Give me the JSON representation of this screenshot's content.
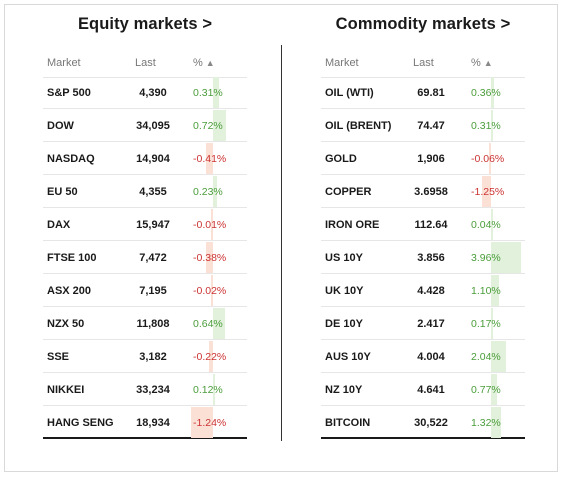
{
  "equity": {
    "title": "Equity markets >",
    "headers": {
      "market": "Market",
      "last": "Last",
      "pct": "%",
      "sort_arrow": "▲"
    },
    "rows": [
      {
        "market": "S&P 500",
        "last": "4,390",
        "pct": "0.31%",
        "value": 0.31
      },
      {
        "market": "DOW",
        "last": "34,095",
        "pct": "0.72%",
        "value": 0.72
      },
      {
        "market": "NASDAQ",
        "last": "14,904",
        "pct": "-0.41%",
        "value": -0.41
      },
      {
        "market": "EU 50",
        "last": "4,355",
        "pct": "0.23%",
        "value": 0.23
      },
      {
        "market": "DAX",
        "last": "15,947",
        "pct": "-0.01%",
        "value": -0.01
      },
      {
        "market": "FTSE 100",
        "last": "7,472",
        "pct": "-0.38%",
        "value": -0.38
      },
      {
        "market": "ASX 200",
        "last": "7,195",
        "pct": "-0.02%",
        "value": -0.02
      },
      {
        "market": "NZX 50",
        "last": "11,808",
        "pct": "0.64%",
        "value": 0.64
      },
      {
        "market": "SSE",
        "last": "3,182",
        "pct": "-0.22%",
        "value": -0.22
      },
      {
        "market": "NIKKEI",
        "last": "33,234",
        "pct": "0.12%",
        "value": 0.12
      },
      {
        "market": "HANG SENG",
        "last": "18,934",
        "pct": "-1.24%",
        "value": -1.24
      }
    ]
  },
  "commodity": {
    "title": "Commodity markets >",
    "headers": {
      "market": "Market",
      "last": "Last",
      "pct": "%",
      "sort_arrow": "▲"
    },
    "rows": [
      {
        "market": "OIL (WTI)",
        "last": "69.81",
        "pct": "0.36%",
        "value": 0.36
      },
      {
        "market": "OIL (BRENT)",
        "last": "74.47",
        "pct": "0.31%",
        "value": 0.31
      },
      {
        "market": "GOLD",
        "last": "1,906",
        "pct": "-0.06%",
        "value": -0.06
      },
      {
        "market": "COPPER",
        "last": "3.6958",
        "pct": "-1.25%",
        "value": -1.25
      },
      {
        "market": "IRON ORE",
        "last": "112.64",
        "pct": "0.04%",
        "value": 0.04
      },
      {
        "market": "US 10Y",
        "last": "3.856",
        "pct": "3.96%",
        "value": 3.96
      },
      {
        "market": "UK 10Y",
        "last": "4.428",
        "pct": "1.10%",
        "value": 1.1
      },
      {
        "market": "DE 10Y",
        "last": "2.417",
        "pct": "0.17%",
        "value": 0.17
      },
      {
        "market": "AUS 10Y",
        "last": "4.004",
        "pct": "2.04%",
        "value": 2.04
      },
      {
        "market": "NZ 10Y",
        "last": "4.641",
        "pct": "0.77%",
        "value": 0.77
      },
      {
        "market": "BITCOIN",
        "last": "30,522",
        "pct": "1.32%",
        "value": 1.32
      }
    ]
  },
  "colors": {
    "positive": "#4a9d3a",
    "negative": "#cc3333",
    "positive_bar": "#e2f1dc",
    "negative_bar": "#fbe0d6"
  }
}
